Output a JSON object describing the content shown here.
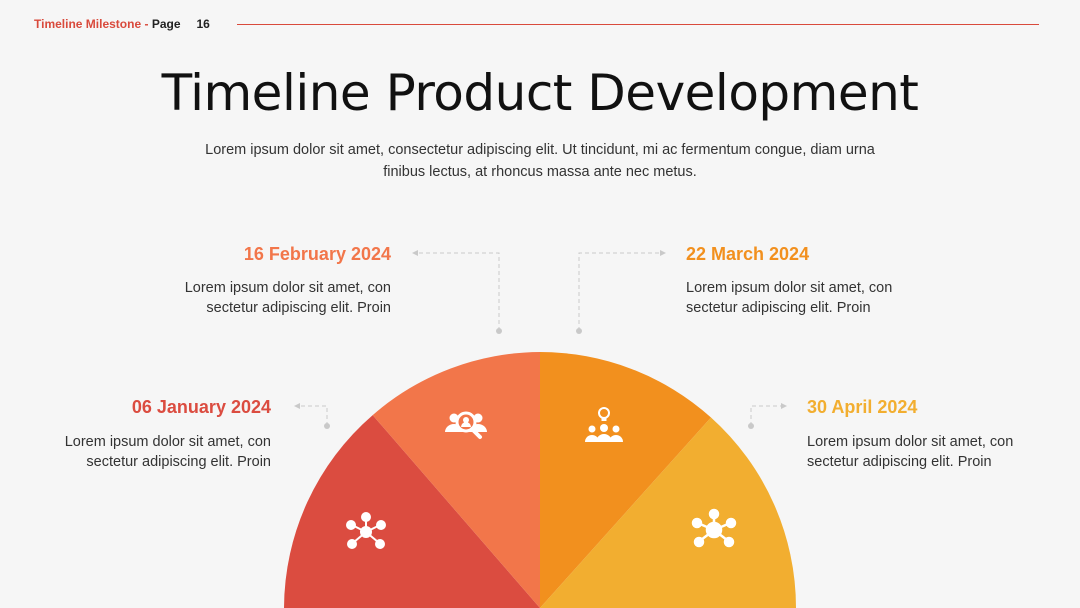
{
  "header": {
    "section": "Timeline Milestone - ",
    "page_label": "Page",
    "page_number": "16"
  },
  "title": "Timeline Product Development",
  "subtitle": "Lorem ipsum dolor sit amet, consectetur adipiscing elit. Ut tincidunt, mi ac fermentum congue, diam urna finibus lectus, at rhoncus massa ante nec metus.",
  "milestones": [
    {
      "date": "06 January 2024",
      "text": "Lorem ipsum dolor sit amet, con sectetur adipiscing elit. Proin",
      "color": "#db4c40",
      "icon": "network-people-icon"
    },
    {
      "date": "16 February 2024",
      "text": "Lorem ipsum dolor sit amet, con sectetur adipiscing elit. Proin",
      "color": "#f2764a",
      "icon": "people-search-icon"
    },
    {
      "date": "22 March 2024",
      "text": "Lorem ipsum dolor sit amet, con sectetur adipiscing elit. Proin",
      "color": "#f2901e",
      "icon": "team-idea-icon"
    },
    {
      "date": "30 April 2024",
      "text": "Lorem ipsum dolor sit amet, con sectetur adipiscing elit. Proin",
      "color": "#f2ae30",
      "icon": "hub-network-icon"
    }
  ]
}
